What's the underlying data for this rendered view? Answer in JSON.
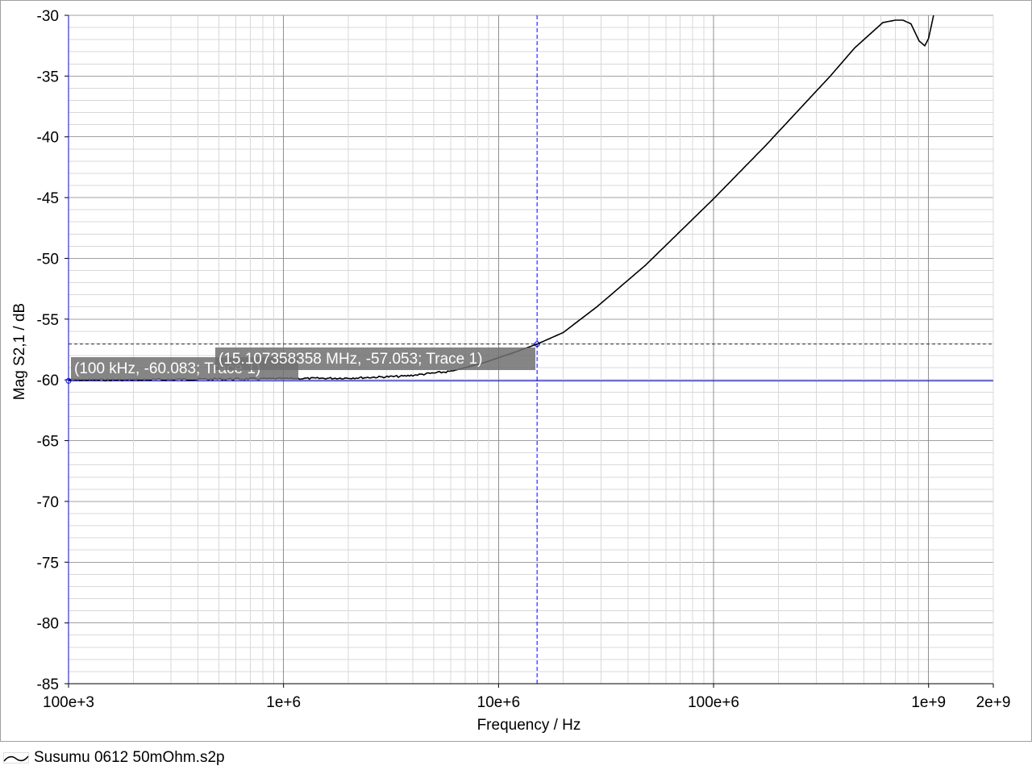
{
  "chart_data": {
    "type": "line",
    "xlabel": "Frequency / Hz",
    "ylabel": "Mag S2,1 / dB",
    "xscale": "log",
    "xlim": [
      100000,
      2000000000
    ],
    "ylim": [
      -85,
      -30
    ],
    "grid": true,
    "x_ticks": [
      {
        "value": 100000,
        "label": "100e+3"
      },
      {
        "value": 1000000,
        "label": "1e+6"
      },
      {
        "value": 10000000,
        "label": "10e+6"
      },
      {
        "value": 100000000,
        "label": "100e+6"
      },
      {
        "value": 1000000000,
        "label": "1e+9"
      },
      {
        "value": 2000000000,
        "label": "2e+9"
      }
    ],
    "y_ticks": [
      -30,
      -35,
      -40,
      -45,
      -50,
      -55,
      -60,
      -65,
      -70,
      -75,
      -80,
      -85
    ],
    "y_tick_labels": [
      "-30",
      "-35",
      "-40",
      "-45",
      "-50",
      "-55",
      "-60",
      "-65",
      "-70",
      "-75",
      "-80",
      "-85"
    ],
    "series": [
      {
        "name": "Susumu 0612 50mOhm.s2p",
        "color": "#000000",
        "x": [
          100000,
          200000,
          400000,
          1000000,
          2000000,
          3600000,
          6000000,
          8500000,
          12000000,
          15107358,
          20000000,
          28600000,
          48000000,
          100000000,
          175000000,
          349000000,
          452000000,
          612000000,
          700000000,
          760000000,
          828000000,
          903000000,
          960000000,
          1000000000,
          1055000000
        ],
        "y": [
          -60.0,
          -60.0,
          -59.95,
          -59.9,
          -59.85,
          -59.7,
          -59.3,
          -58.6,
          -57.7,
          -57.053,
          -56.1,
          -54.0,
          -50.6,
          -45.1,
          -40.7,
          -35.0,
          -32.7,
          -30.6,
          -30.4,
          -30.4,
          -30.7,
          -32.1,
          -32.5,
          -31.9,
          -30.0
        ]
      }
    ],
    "markers": [
      {
        "label": "(100 kHz, -60.083; Trace 1)",
        "x": 100000,
        "y": -60.083
      },
      {
        "label": "(15.107358358 MHz, -57.053; Trace 1)",
        "x": 15107358.358,
        "y": -57.053
      }
    ],
    "marker_color": "#0000ff",
    "legend": "bottom-left"
  }
}
